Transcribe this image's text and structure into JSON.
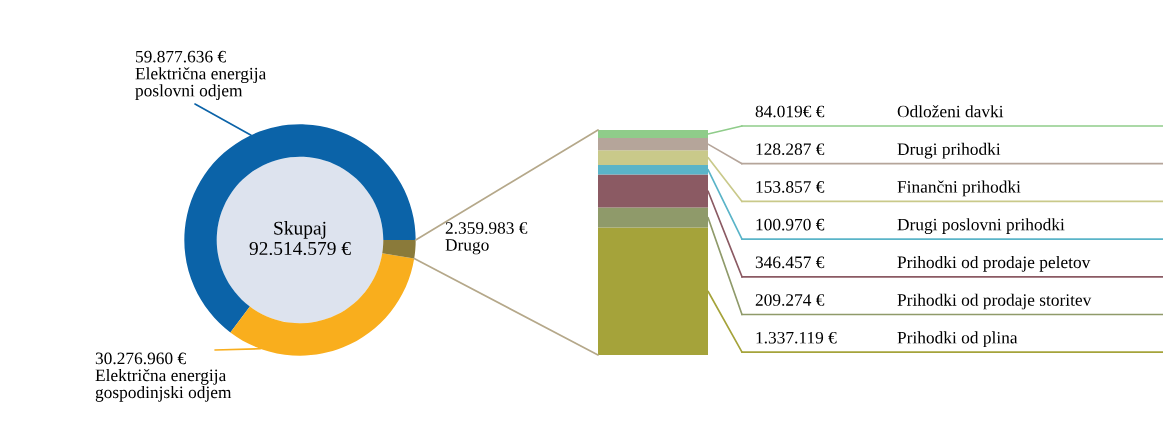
{
  "chart_data": [
    {
      "type": "donut",
      "categories": [
        "Električna energija\nposlovni odjem",
        "Električna energija\ngospodinjski odjem",
        "Drugo"
      ],
      "values": [
        59877636,
        30276960,
        2359983
      ],
      "colors": [
        "#0b63a8",
        "#f9ae1d",
        "#8a7a3a"
      ],
      "value_labels": [
        "59.877.636 €",
        "30.276.960 €",
        "2.359.983 €"
      ],
      "annotations": [
        "Skupaj\n92.514.579 €"
      ]
    },
    {
      "type": "bar",
      "stacked": true,
      "categories": [
        null
      ],
      "series": [
        {
          "name": "Prihodki od plina",
          "color": "#a5a33a",
          "values": [
            1337119
          ],
          "value_labels": [
            "1.337.119 €"
          ]
        },
        {
          "name": "Prihodki od prodaje storitev",
          "color": "#8f9a6a",
          "values": [
            209274
          ],
          "value_labels": [
            "209.274 €"
          ]
        },
        {
          "name": "Prihodki od prodaje peletov",
          "color": "#8b5a63",
          "values": [
            346457
          ],
          "value_labels": [
            "346.457 €"
          ]
        },
        {
          "name": "Drugi poslovni prihodki",
          "color": "#5ab4c8",
          "values": [
            100970
          ],
          "value_labels": [
            "100.970 €"
          ]
        },
        {
          "name": "Finančni prihodki",
          "color": "#c9c98a",
          "values": [
            153857
          ],
          "value_labels": [
            "153.857 €"
          ]
        },
        {
          "name": "Drugi prihodki",
          "color": "#b5a59a",
          "values": [
            128287
          ],
          "value_labels": [
            "128.287 €"
          ]
        },
        {
          "name": "Odloženi davki",
          "color": "#8fcc8a",
          "values": [
            84019
          ],
          "value_labels": [
            "84.019€ €"
          ]
        }
      ]
    }
  ]
}
